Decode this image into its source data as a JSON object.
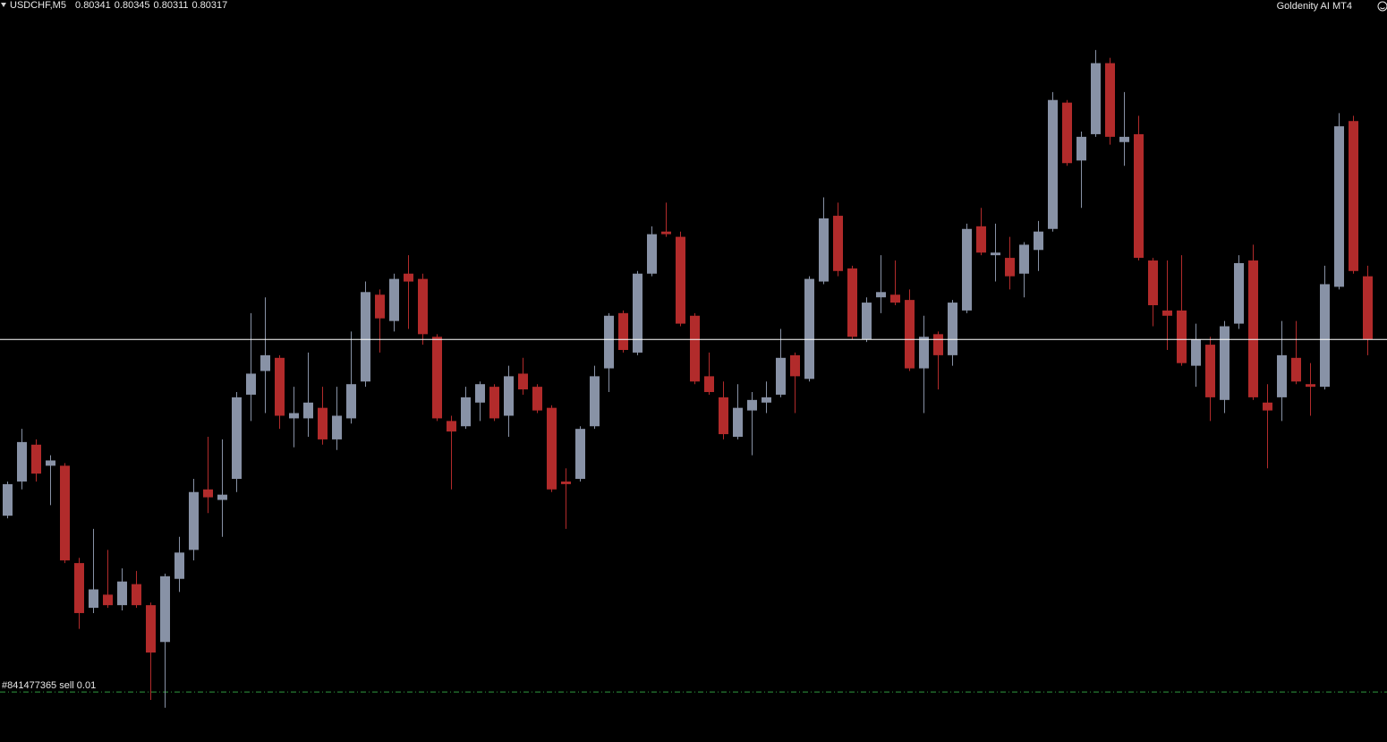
{
  "chart_data": {
    "type": "candlestick",
    "title": "USDCHF,M5",
    "expert": "Goldenity AI MT4",
    "ylim": [
      0.80164,
      0.80446
    ],
    "up_color": "#8892a6",
    "down_color": "#b22b2b",
    "bid_line_color": "#ffffff",
    "order_line_color": "#2f9a3f",
    "orders": [
      {
        "label": "#841477365 sell 0.01",
        "price": 0.80183
      }
    ],
    "candles": [
      [
        0.8025,
        0.80263,
        0.80249,
        0.80262
      ],
      [
        0.80263,
        0.80283,
        0.8026,
        0.80278
      ],
      [
        0.80277,
        0.80279,
        0.80263,
        0.80266
      ],
      [
        0.80269,
        0.80273,
        0.80254,
        0.80271
      ],
      [
        0.80269,
        0.8027,
        0.80232,
        0.80233
      ],
      [
        0.80232,
        0.80234,
        0.80207,
        0.80213
      ],
      [
        0.80215,
        0.80245,
        0.80213,
        0.80222
      ],
      [
        0.8022,
        0.80237,
        0.80215,
        0.80216
      ],
      [
        0.80216,
        0.8023,
        0.80214,
        0.80225
      ],
      [
        0.80224,
        0.80229,
        0.80215,
        0.80216
      ],
      [
        0.80216,
        0.80217,
        0.8018,
        0.80198
      ],
      [
        0.80202,
        0.80228,
        0.80177,
        0.80227
      ],
      [
        0.80226,
        0.80242,
        0.80221,
        0.80236
      ],
      [
        0.80237,
        0.80264,
        0.80233,
        0.80259
      ],
      [
        0.8026,
        0.8028,
        0.80251,
        0.80257
      ],
      [
        0.80256,
        0.80279,
        0.80242,
        0.80258
      ],
      [
        0.80264,
        0.80297,
        0.80259,
        0.80295
      ],
      [
        0.80296,
        0.80327,
        0.80286,
        0.80304
      ],
      [
        0.80305,
        0.80333,
        0.80289,
        0.80311
      ],
      [
        0.8031,
        0.80311,
        0.80283,
        0.80288
      ],
      [
        0.80287,
        0.80299,
        0.80276,
        0.80289
      ],
      [
        0.80287,
        0.80312,
        0.8028,
        0.80293
      ],
      [
        0.80291,
        0.80299,
        0.80277,
        0.80279
      ],
      [
        0.80279,
        0.80299,
        0.80275,
        0.80288
      ],
      [
        0.80287,
        0.8032,
        0.80285,
        0.803
      ],
      [
        0.80301,
        0.80339,
        0.80299,
        0.80335
      ],
      [
        0.80334,
        0.80336,
        0.80312,
        0.80325
      ],
      [
        0.80324,
        0.80342,
        0.8032,
        0.8034
      ],
      [
        0.80342,
        0.80349,
        0.80321,
        0.80339
      ],
      [
        0.8034,
        0.80342,
        0.80315,
        0.80319
      ],
      [
        0.80318,
        0.80319,
        0.80286,
        0.80287
      ],
      [
        0.80286,
        0.80288,
        0.8026,
        0.80282
      ],
      [
        0.80284,
        0.80299,
        0.80283,
        0.80295
      ],
      [
        0.80293,
        0.80301,
        0.80286,
        0.803
      ],
      [
        0.80299,
        0.803,
        0.80286,
        0.80287
      ],
      [
        0.80288,
        0.80307,
        0.8028,
        0.80303
      ],
      [
        0.80304,
        0.8031,
        0.80296,
        0.80298
      ],
      [
        0.80299,
        0.803,
        0.80289,
        0.8029
      ],
      [
        0.80291,
        0.80292,
        0.80259,
        0.8026
      ],
      [
        0.80263,
        0.80268,
        0.80245,
        0.80262
      ],
      [
        0.80264,
        0.80284,
        0.80263,
        0.80283
      ],
      [
        0.80284,
        0.80307,
        0.80283,
        0.80303
      ],
      [
        0.80306,
        0.80327,
        0.80297,
        0.80326
      ],
      [
        0.80327,
        0.80328,
        0.80312,
        0.80313
      ],
      [
        0.80312,
        0.80343,
        0.80311,
        0.80342
      ],
      [
        0.80342,
        0.8036,
        0.80341,
        0.80357
      ],
      [
        0.80358,
        0.80369,
        0.80356,
        0.80357
      ],
      [
        0.80356,
        0.80358,
        0.80322,
        0.80323
      ],
      [
        0.80326,
        0.80327,
        0.803,
        0.80301
      ],
      [
        0.80303,
        0.80312,
        0.80296,
        0.80297
      ],
      [
        0.80295,
        0.80301,
        0.80279,
        0.80281
      ],
      [
        0.8028,
        0.803,
        0.80279,
        0.80291
      ],
      [
        0.8029,
        0.80297,
        0.80273,
        0.80294
      ],
      [
        0.80293,
        0.80301,
        0.80289,
        0.80295
      ],
      [
        0.80296,
        0.80321,
        0.80295,
        0.8031
      ],
      [
        0.80311,
        0.80312,
        0.80289,
        0.80303
      ],
      [
        0.80302,
        0.80341,
        0.80301,
        0.8034
      ],
      [
        0.80339,
        0.80371,
        0.80338,
        0.80363
      ],
      [
        0.80364,
        0.80369,
        0.80341,
        0.80343
      ],
      [
        0.80344,
        0.80345,
        0.80317,
        0.80318
      ],
      [
        0.80317,
        0.80333,
        0.80316,
        0.80331
      ],
      [
        0.80333,
        0.80349,
        0.80327,
        0.80335
      ],
      [
        0.80334,
        0.80347,
        0.8033,
        0.80331
      ],
      [
        0.80332,
        0.80336,
        0.80305,
        0.80306
      ],
      [
        0.80306,
        0.80326,
        0.80289,
        0.80318
      ],
      [
        0.80319,
        0.8032,
        0.80298,
        0.80311
      ],
      [
        0.80311,
        0.80332,
        0.80307,
        0.80331
      ],
      [
        0.80328,
        0.80361,
        0.80327,
        0.80359
      ],
      [
        0.8036,
        0.80367,
        0.80349,
        0.8035
      ],
      [
        0.80349,
        0.80361,
        0.80339,
        0.8035
      ],
      [
        0.80348,
        0.80356,
        0.80336,
        0.80341
      ],
      [
        0.80342,
        0.80354,
        0.80333,
        0.80353
      ],
      [
        0.80351,
        0.80362,
        0.80343,
        0.80358
      ],
      [
        0.80359,
        0.80411,
        0.80358,
        0.80408
      ],
      [
        0.80407,
        0.80408,
        0.80383,
        0.80384
      ],
      [
        0.80385,
        0.80396,
        0.80367,
        0.80394
      ],
      [
        0.80395,
        0.80427,
        0.80394,
        0.80422
      ],
      [
        0.80422,
        0.80424,
        0.80391,
        0.80394
      ],
      [
        0.80392,
        0.80411,
        0.80383,
        0.80394
      ],
      [
        0.80395,
        0.80402,
        0.80347,
        0.80348
      ],
      [
        0.80347,
        0.80348,
        0.80322,
        0.8033
      ],
      [
        0.80328,
        0.80347,
        0.80313,
        0.80326
      ],
      [
        0.80328,
        0.80349,
        0.80307,
        0.80308
      ],
      [
        0.80307,
        0.80323,
        0.80299,
        0.80317
      ],
      [
        0.80315,
        0.80318,
        0.80286,
        0.80295
      ],
      [
        0.80294,
        0.80324,
        0.80289,
        0.80322
      ],
      [
        0.80323,
        0.80349,
        0.80321,
        0.80346
      ],
      [
        0.80347,
        0.80353,
        0.80294,
        0.80295
      ],
      [
        0.80293,
        0.803,
        0.80268,
        0.8029
      ],
      [
        0.80295,
        0.80324,
        0.80286,
        0.80311
      ],
      [
        0.8031,
        0.80324,
        0.803,
        0.80301
      ],
      [
        0.803,
        0.80308,
        0.80288,
        0.80299
      ],
      [
        0.80299,
        0.80345,
        0.80298,
        0.80338
      ],
      [
        0.80337,
        0.80403,
        0.80336,
        0.80398
      ],
      [
        0.804,
        0.80402,
        0.80342,
        0.80343
      ],
      [
        0.80341,
        0.80345,
        0.80311,
        0.80317
      ]
    ]
  }
}
